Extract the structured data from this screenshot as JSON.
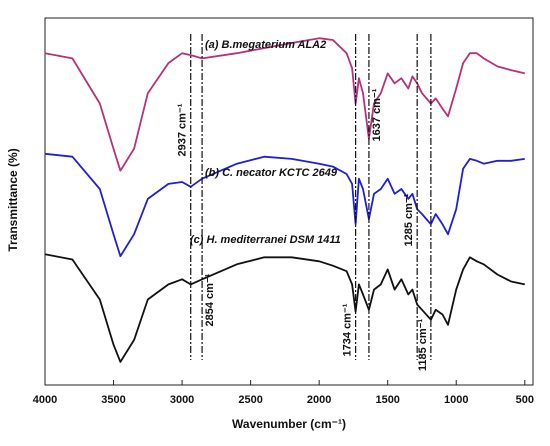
{
  "chart_data": {
    "type": "line",
    "x_label": "Wavenumber (cm⁻¹)",
    "y_label": "Transmittance (%)",
    "xlim": [
      4000,
      440
    ],
    "xticks": [
      4000,
      3500,
      3000,
      2500,
      2000,
      1500,
      1000,
      500
    ],
    "ylim": [
      0,
      100
    ],
    "x": [
      4000,
      3800,
      3600,
      3500,
      3450,
      3350,
      3250,
      3100,
      3000,
      2937,
      2854,
      2600,
      2400,
      2200,
      2000,
      1900,
      1800,
      1760,
      1734,
      1710,
      1680,
      1637,
      1600,
      1550,
      1500,
      1450,
      1400,
      1350,
      1320,
      1285,
      1250,
      1185,
      1150,
      1100,
      1060,
      1000,
      950,
      900,
      850,
      800,
      700,
      600,
      500
    ],
    "series": [
      {
        "name": "(a) B.megaterium ALA2",
        "color": "#b8307a",
        "values": [
          90.4,
          89.0,
          76.7,
          64.4,
          58.4,
          64.4,
          79.5,
          87.7,
          90.4,
          89.9,
          89.0,
          90.4,
          91.8,
          93.2,
          94.5,
          94.0,
          90.4,
          86.3,
          76.7,
          83.6,
          79.5,
          67.1,
          76.7,
          79.5,
          84.9,
          82.2,
          83.6,
          80.8,
          84.1,
          82.2,
          79.5,
          76.7,
          78.1,
          75.3,
          73.2,
          80.8,
          87.7,
          90.4,
          90.4,
          89.0,
          86.8,
          85.8,
          84.9
        ]
      },
      {
        "name": "(b) C. necator KCTC 2649",
        "color": "#1f1fd8",
        "values": [
          63.0,
          62.2,
          53.4,
          41.1,
          35.1,
          41.1,
          50.7,
          54.8,
          55.3,
          54.0,
          56.2,
          60.3,
          62.2,
          61.6,
          60.3,
          59.5,
          57.5,
          54.8,
          43.8,
          56.2,
          53.4,
          45.2,
          52.1,
          53.4,
          56.2,
          52.1,
          53.4,
          50.7,
          52.1,
          47.9,
          46.6,
          43.8,
          46.6,
          43.8,
          41.1,
          47.9,
          58.9,
          61.6,
          61.1,
          60.3,
          61.1,
          61.1,
          61.6
        ]
      },
      {
        "name": "(c) H. mediterranei DSM 1411",
        "color": "#111111",
        "values": [
          35.6,
          34.2,
          23.3,
          11.0,
          6.3,
          12.3,
          23.3,
          27.4,
          28.8,
          27.4,
          28.8,
          32.9,
          34.8,
          34.8,
          33.7,
          32.5,
          31.0,
          27.4,
          20.0,
          27.4,
          24.7,
          20.5,
          26.0,
          27.4,
          31.5,
          26.0,
          28.8,
          24.7,
          26.0,
          21.9,
          20.5,
          17.8,
          20.5,
          19.2,
          16.4,
          26.0,
          31.5,
          34.8,
          33.7,
          32.9,
          30.1,
          28.2,
          27.4
        ]
      }
    ],
    "annotations": [
      {
        "x": 2937,
        "label": "2937 cm⁻¹"
      },
      {
        "x": 2854,
        "label": "2854 cm⁻¹"
      },
      {
        "x": 1734,
        "label": "1734 cm⁻¹"
      },
      {
        "x": 1637,
        "label": "1637 cm⁻¹"
      },
      {
        "x": 1285,
        "label": "1285 cm⁻¹"
      },
      {
        "x": 1185,
        "label": "1185 cm⁻¹"
      }
    ]
  }
}
